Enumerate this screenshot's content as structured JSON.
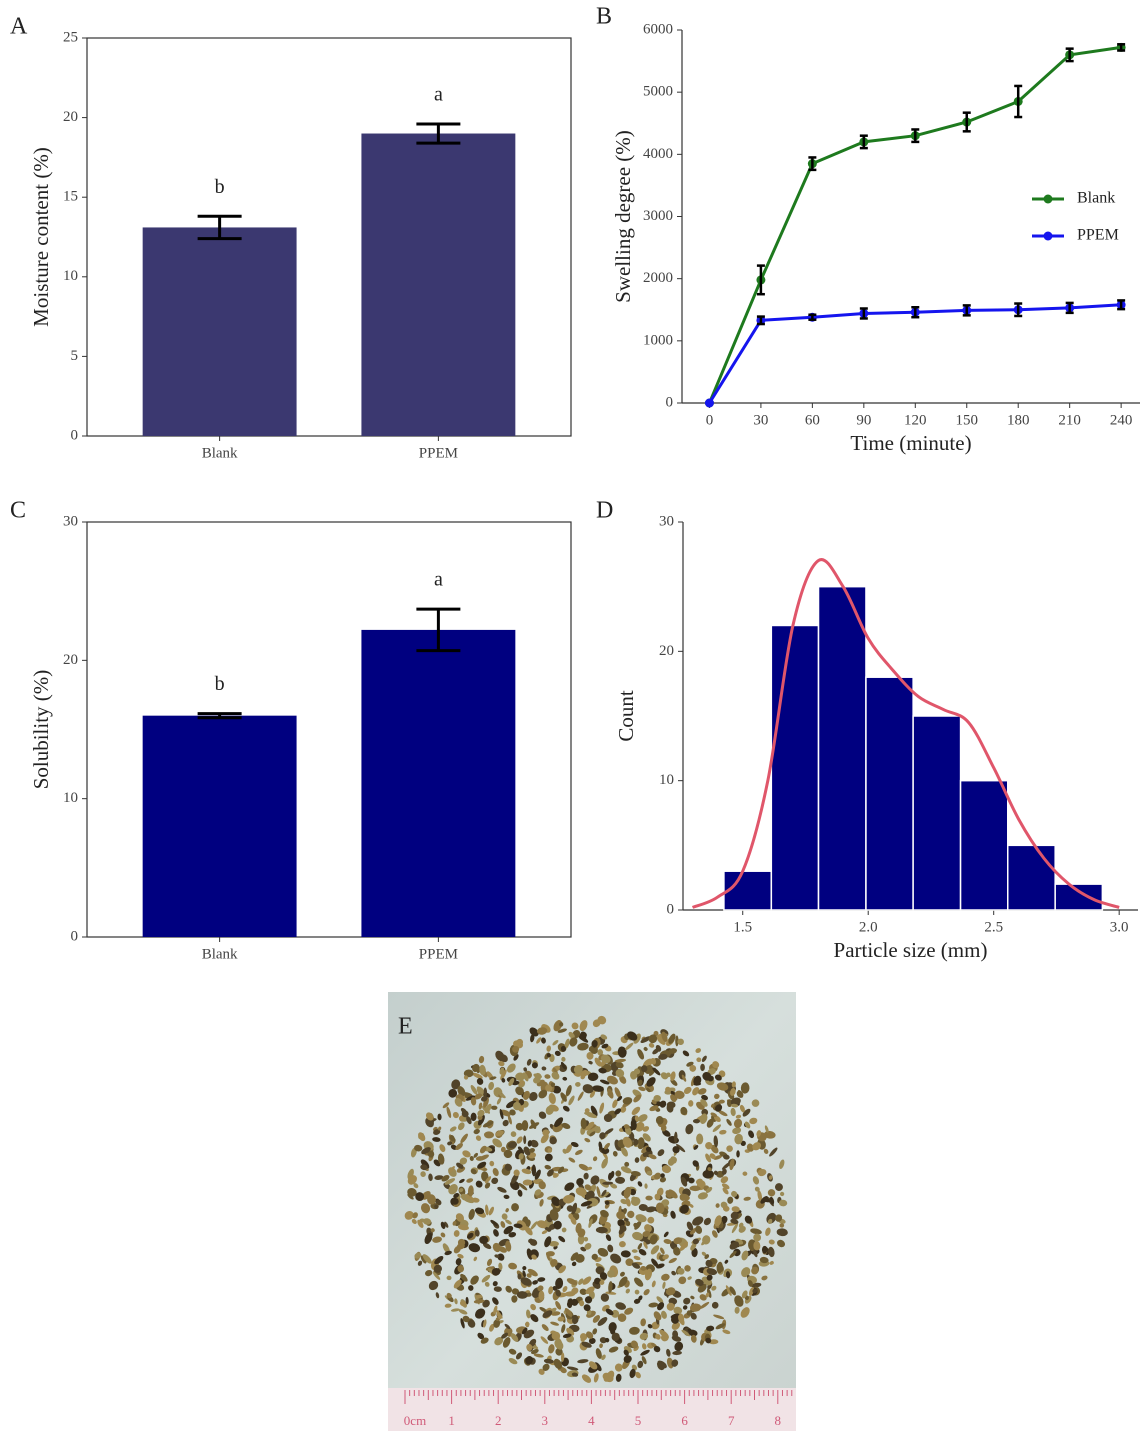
{
  "chart_data": [
    {
      "type": "bar",
      "panel": "A",
      "ylabel": "Moisture content (%)",
      "categories": [
        "Blank",
        "PPEM"
      ],
      "values": [
        13.1,
        19.0
      ],
      "errors": [
        0.7,
        0.6
      ],
      "annotations": [
        "b",
        "a"
      ],
      "color": "#3b3870",
      "ylim": [
        0,
        25
      ],
      "yticks": [
        0,
        5,
        10,
        15,
        20,
        25
      ]
    },
    {
      "type": "line",
      "panel": "B",
      "xlabel": "Time (minute)",
      "ylabel": "Swelling degree (%)",
      "x": [
        0,
        30,
        60,
        90,
        120,
        150,
        180,
        210,
        240
      ],
      "series": [
        {
          "name": "Blank",
          "color": "#1e7a1e",
          "values": [
            0,
            1980,
            3850,
            4200,
            4300,
            4520,
            4850,
            5600,
            5720
          ],
          "errors": [
            0,
            230,
            100,
            100,
            100,
            150,
            250,
            100,
            50
          ]
        },
        {
          "name": "PPEM",
          "color": "#1515ee",
          "values": [
            0,
            1330,
            1380,
            1440,
            1460,
            1490,
            1500,
            1530,
            1580
          ],
          "errors": [
            0,
            60,
            40,
            80,
            80,
            80,
            100,
            80,
            70
          ]
        }
      ],
      "xlim": [
        -16,
        251
      ],
      "xticks": [
        0,
        30,
        60,
        90,
        120,
        150,
        180,
        210,
        240
      ],
      "ylim": [
        0,
        6000
      ],
      "yticks": [
        0,
        1000,
        2000,
        3000,
        4000,
        5000,
        6000
      ],
      "legend": "right"
    },
    {
      "type": "bar",
      "panel": "C",
      "ylabel": "Solubility (%)",
      "categories": [
        "Blank",
        "PPEM"
      ],
      "values": [
        16.0,
        22.2
      ],
      "errors": [
        0.15,
        1.5
      ],
      "annotations": [
        "b",
        "a"
      ],
      "color": "#000080",
      "ylim": [
        0,
        30
      ],
      "yticks": [
        0,
        10,
        20,
        30
      ]
    },
    {
      "type": "histogram",
      "panel": "D",
      "xlabel": "Particle size (mm)",
      "ylabel": "Count",
      "bins": [
        1.425,
        1.614,
        1.802,
        1.991,
        2.179,
        2.368,
        2.556,
        2.745,
        2.933
      ],
      "values": [
        3,
        22,
        25,
        18,
        15,
        10,
        5,
        2
      ],
      "color": "#000080",
      "density": {
        "color": "#e0566a",
        "x": [
          1.3,
          1.4,
          1.5,
          1.6,
          1.7,
          1.8,
          1.9,
          2.0,
          2.1,
          2.2,
          2.3,
          2.4,
          2.5,
          2.6,
          2.7,
          2.8,
          2.9,
          3.0
        ],
        "values": [
          0.2,
          1,
          3,
          10,
          22,
          27,
          25,
          21,
          18.5,
          16.5,
          15.5,
          14.5,
          11,
          7,
          4,
          2,
          0.8,
          0.2
        ]
      },
      "xlim": [
        1.262,
        3.075
      ],
      "xticks": [
        {
          "value": 1.5,
          "label": "1.5"
        },
        {
          "value": 2.0,
          "label": "2.0"
        },
        {
          "value": 2.5,
          "label": "2.5"
        },
        {
          "value": 3.0,
          "label": "3.0"
        }
      ],
      "ylim": [
        0,
        30
      ],
      "yticks": [
        0,
        10,
        20,
        30
      ]
    }
  ],
  "photo": {
    "panel": "E",
    "ruler_labels": [
      "0cm",
      "1",
      "2",
      "3",
      "4",
      "5",
      "6",
      "7",
      "8"
    ]
  }
}
